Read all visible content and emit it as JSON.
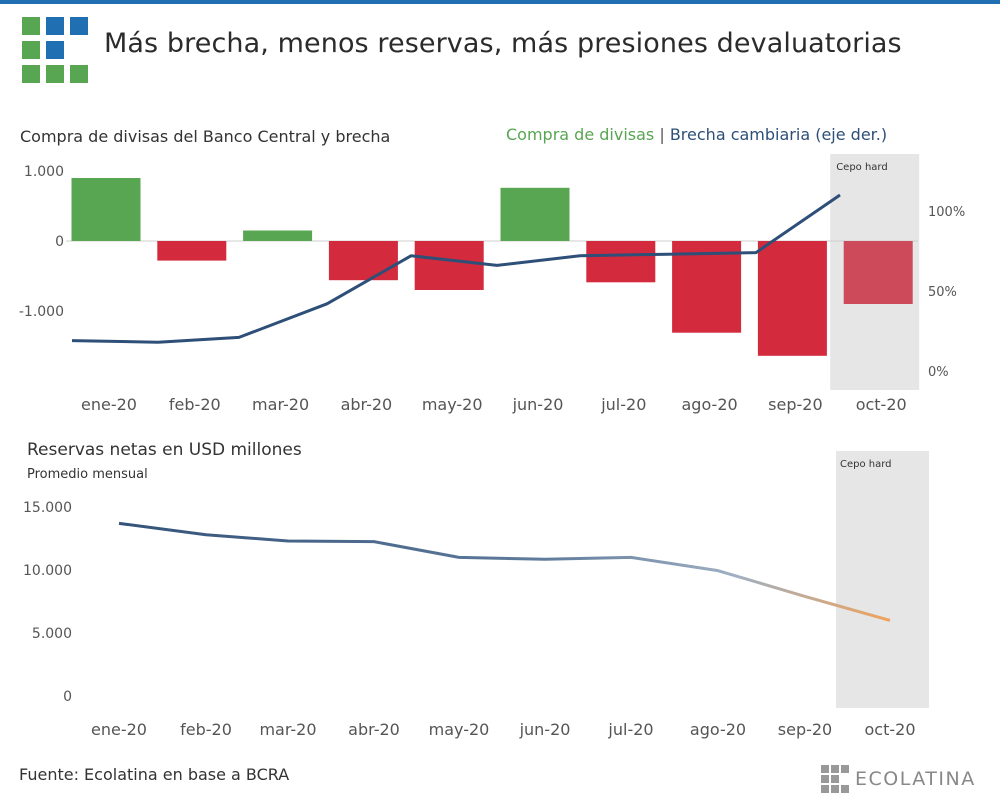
{
  "header": {
    "title": "Más brecha, menos reservas, más presiones devaluatorias"
  },
  "colors": {
    "accent_bar": "#1f6fb2",
    "positive_bar": "#58a552",
    "negative_bar": "#d42a3d",
    "negative_bar_shaded": "#cc4a5a",
    "brecha_line": "#2d4f78",
    "reserves_line_start": "#34537a",
    "reserves_line_end": "#f0a35c",
    "shaded_region": "#e6e6e6"
  },
  "chart_data": [
    {
      "type": "bar",
      "title": "Compra de divisas del Banco Central y brecha",
      "legend": {
        "compra": "Compra de divisas",
        "separator": "|",
        "brecha": "Brecha cambiaria (eje der.)"
      },
      "annotation": "Cepo hard",
      "categories": [
        "ene-20",
        "feb-20",
        "mar-20",
        "abr-20",
        "may-20",
        "jun-20",
        "jul-20",
        "ago-20",
        "sep-20",
        "oct-20"
      ],
      "series": [
        {
          "name": "Compra de divisas",
          "type": "bar",
          "axis": "left",
          "values": [
            900,
            -280,
            150,
            -560,
            -700,
            760,
            -590,
            -1310,
            -1640,
            -900
          ]
        },
        {
          "name": "Brecha cambiaria (eje der.)",
          "type": "line",
          "axis": "right",
          "values": [
            19,
            18,
            21,
            42,
            72,
            66,
            72,
            73,
            74,
            110
          ]
        }
      ],
      "left_axis": {
        "ticks": [
          1000,
          0,
          -1000
        ],
        "tick_labels": [
          "1.000",
          "0",
          "-1.000"
        ],
        "ylim": [
          -1650,
          1000
        ]
      },
      "right_axis": {
        "ticks": [
          100,
          50,
          0
        ],
        "tick_labels": [
          "100%",
          "50%",
          "0%"
        ],
        "ylim": [
          0,
          122
        ]
      },
      "shaded_categories": [
        "oct-20"
      ],
      "grid": false
    },
    {
      "type": "line",
      "title": "Reservas netas en USD millones",
      "subtitle": "Promedio mensual",
      "annotation": "Cepo hard",
      "categories": [
        "ene-20",
        "feb-20",
        "mar-20",
        "abr-20",
        "may-20",
        "jun-20",
        "jul-20",
        "ago-20",
        "sep-20",
        "oct-20"
      ],
      "series": [
        {
          "name": "Reservas netas",
          "values": [
            13700,
            12800,
            12300,
            12250,
            11000,
            10850,
            11000,
            9950,
            7900,
            6000
          ]
        }
      ],
      "y_axis": {
        "ticks": [
          15000,
          10000,
          5000,
          0
        ],
        "tick_labels": [
          "15.000",
          "10.000",
          "5.000",
          "0"
        ],
        "ylim": [
          0,
          15500
        ]
      },
      "shaded_categories": [
        "oct-20"
      ],
      "grid": false
    }
  ],
  "footer": {
    "source": "Fuente: Ecolatina en base a BCRA",
    "brand": "ECOLATINA"
  }
}
